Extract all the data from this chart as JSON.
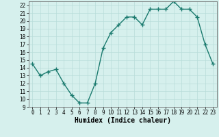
{
  "x": [
    0,
    1,
    2,
    3,
    4,
    5,
    6,
    7,
    8,
    9,
    10,
    11,
    12,
    13,
    14,
    15,
    16,
    17,
    18,
    19,
    20,
    21,
    22,
    23
  ],
  "y": [
    14.5,
    13.0,
    13.5,
    13.8,
    12.0,
    10.5,
    9.5,
    9.5,
    12.0,
    16.5,
    18.5,
    19.5,
    20.5,
    20.5,
    19.5,
    21.5,
    21.5,
    21.5,
    22.5,
    21.5,
    21.5,
    20.5,
    17.0,
    14.5
  ],
  "line_color": "#1a7a6e",
  "marker": "+",
  "marker_size": 4,
  "line_width": 1.0,
  "xlabel": "Humidex (Indice chaleur)",
  "xlim": [
    -0.5,
    23.5
  ],
  "ylim": [
    9,
    22.5
  ],
  "yticks": [
    9,
    10,
    11,
    12,
    13,
    14,
    15,
    16,
    17,
    18,
    19,
    20,
    21,
    22
  ],
  "xticks": [
    0,
    1,
    2,
    3,
    4,
    5,
    6,
    7,
    8,
    9,
    10,
    11,
    12,
    13,
    14,
    15,
    16,
    17,
    18,
    19,
    20,
    21,
    22,
    23
  ],
  "bg_color": "#d6f0ed",
  "grid_color": "#b8ddd9",
  "tick_fontsize": 5.5,
  "label_fontsize": 7
}
